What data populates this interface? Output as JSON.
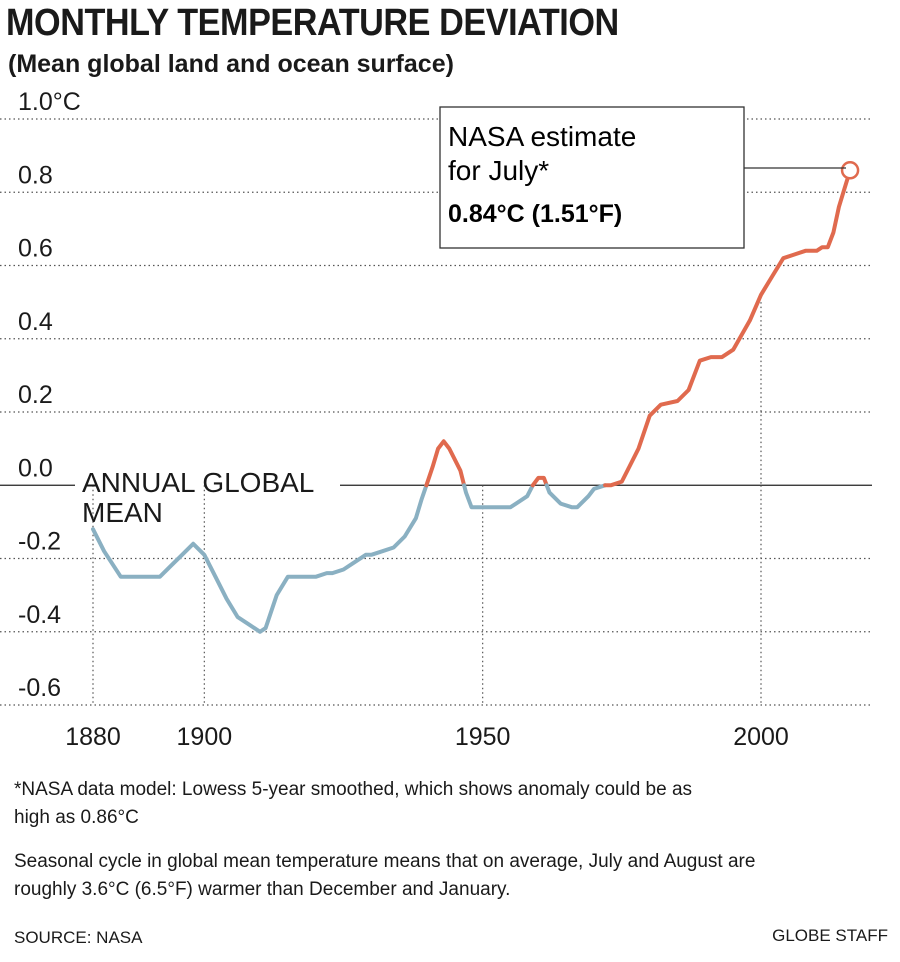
{
  "title": "MONTHLY TEMPERATURE DEVIATION",
  "subtitle": "(Mean global land and ocean surface)",
  "colors": {
    "below": "#8ab0c2",
    "above": "#e06a4e",
    "grid": "#555555",
    "box_border": "#333333"
  },
  "chart_data": {
    "type": "line",
    "title": "MONTHLY TEMPERATURE DEVIATION",
    "subtitle": "(Mean global land and ocean surface)",
    "xlim": [
      1880,
      2016
    ],
    "ylim": [
      -0.6,
      1.0
    ],
    "y_ticks": [
      1.0,
      0.8,
      0.6,
      0.4,
      0.2,
      0.0,
      -0.2,
      -0.4,
      -0.6
    ],
    "y_tick_labels": [
      "1.0°C",
      "0.8",
      "0.6",
      "0.4",
      "0.2",
      "0.0",
      "-0.2",
      "-0.4",
      "-0.6"
    ],
    "x_ticks": [
      1880,
      1900,
      1950,
      2000
    ],
    "x_tick_labels": [
      "1880",
      "1900",
      "1950",
      "2000"
    ],
    "zero_line_label": "ANNUAL GLOBAL MEAN",
    "grid": "dotted horizontal at y ticks, dotted vertical at x ticks",
    "series": [
      {
        "x": [
          1880,
          1882,
          1885,
          1887,
          1890,
          1892,
          1894,
          1896,
          1898,
          1900,
          1902,
          1904,
          1906,
          1908,
          1910,
          1911,
          1913,
          1915,
          1917,
          1919,
          1920,
          1922,
          1923,
          1925,
          1927,
          1929,
          1930,
          1932,
          1934,
          1936,
          1938,
          1939,
          1941,
          1942,
          1943,
          1944,
          1946,
          1947,
          1948,
          1950,
          1953,
          1955,
          1956,
          1958,
          1959,
          1960,
          1961,
          1962,
          1964,
          1966,
          1967,
          1969,
          1970,
          1972,
          1973,
          1975,
          1976,
          1978,
          1980,
          1982,
          1985,
          1987,
          1989,
          1991,
          1993,
          1995,
          1998,
          2000,
          2002,
          2004,
          2006,
          2008,
          2010,
          2011,
          2012,
          2013,
          2014,
          2015,
          2016
        ],
        "y": [
          -0.12,
          -0.18,
          -0.25,
          -0.25,
          -0.25,
          -0.25,
          -0.22,
          -0.19,
          -0.16,
          -0.19,
          -0.25,
          -0.31,
          -0.36,
          -0.38,
          -0.4,
          -0.39,
          -0.3,
          -0.25,
          -0.25,
          -0.25,
          -0.25,
          -0.24,
          -0.24,
          -0.23,
          -0.21,
          -0.19,
          -0.19,
          -0.18,
          -0.17,
          -0.14,
          -0.09,
          -0.04,
          0.05,
          0.1,
          0.12,
          0.1,
          0.04,
          -0.02,
          -0.06,
          -0.06,
          -0.06,
          -0.06,
          -0.05,
          -0.03,
          0.0,
          0.02,
          0.02,
          -0.02,
          -0.05,
          -0.06,
          -0.06,
          -0.03,
          -0.01,
          0.0,
          0.0,
          0.01,
          0.04,
          0.1,
          0.19,
          0.22,
          0.23,
          0.26,
          0.34,
          0.35,
          0.35,
          0.37,
          0.45,
          0.52,
          0.57,
          0.62,
          0.63,
          0.64,
          0.64,
          0.65,
          0.65,
          0.69,
          0.76,
          0.81,
          0.86
        ]
      }
    ],
    "annotation": {
      "x": 2016,
      "y": 0.86,
      "lines": [
        "NASA estimate",
        "for July*"
      ],
      "value": "0.84°C (1.51°F)"
    }
  },
  "footnote": "*NASA data model: Lowess 5-year smoothed, which shows anomaly could be as high as 0.86°C",
  "note": "Seasonal cycle in global mean temperature means that on average, July and August are roughly 3.6°C (6.5°F) warmer than December and January.",
  "source": "SOURCE: NASA",
  "credit": "GLOBE STAFF"
}
